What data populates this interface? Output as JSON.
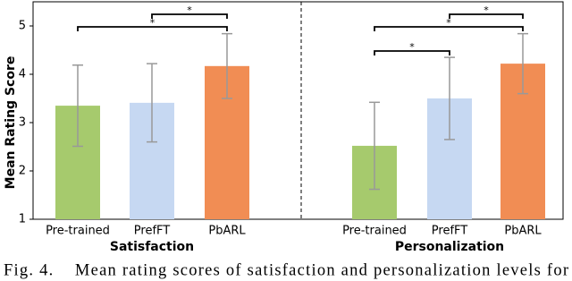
{
  "chart_data": {
    "type": "bar",
    "ylabel": "Mean Rating Score",
    "ylim": [
      1,
      5.5
    ],
    "yticks": [
      1,
      2,
      3,
      4,
      5
    ],
    "colors": [
      "#a6ca6d",
      "#c6d8f2",
      "#f18d54"
    ],
    "groups": [
      {
        "name": "Satisfaction",
        "categories": [
          "Pre-trained",
          "PrefFT",
          "PbARL"
        ],
        "values": [
          3.35,
          3.41,
          4.17
        ],
        "errors": [
          0.84,
          0.81,
          0.67
        ],
        "annotations": [
          "*",
          "*"
        ]
      },
      {
        "name": "Personalization",
        "categories": [
          "Pre-trained",
          "PrefFT",
          "PbARL"
        ],
        "values": [
          2.52,
          3.5,
          4.22
        ],
        "errors": [
          0.9,
          0.85,
          0.62
        ],
        "annotations": [
          "*",
          "*",
          "*"
        ]
      }
    ]
  },
  "caption": "Fig. 4.    Mean rating scores of satisfaction and personalization levels for"
}
